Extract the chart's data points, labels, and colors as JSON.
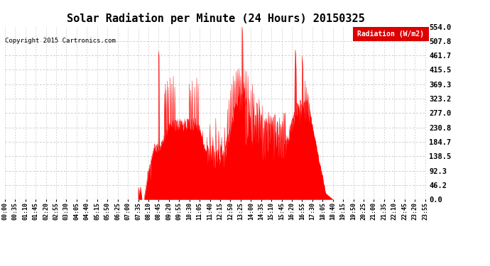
{
  "title": "Solar Radiation per Minute (24 Hours) 20150325",
  "copyright_text": "Copyright 2015 Cartronics.com",
  "legend_label": "Radiation (W/m2)",
  "yticks": [
    0.0,
    46.2,
    92.3,
    138.5,
    184.7,
    230.8,
    277.0,
    323.2,
    369.3,
    415.5,
    461.7,
    507.8,
    554.0
  ],
  "ymax": 554.0,
  "ymin": 0.0,
  "fill_color": "#FF0000",
  "line_color": "#FF0000",
  "bg_color": "#FFFFFF",
  "grid_color": "#BBBBBB",
  "title_fontsize": 11,
  "copyright_fontsize": 6.5,
  "tick_fontsize": 6,
  "ytick_fontsize": 7.5,
  "legend_fontsize": 7
}
